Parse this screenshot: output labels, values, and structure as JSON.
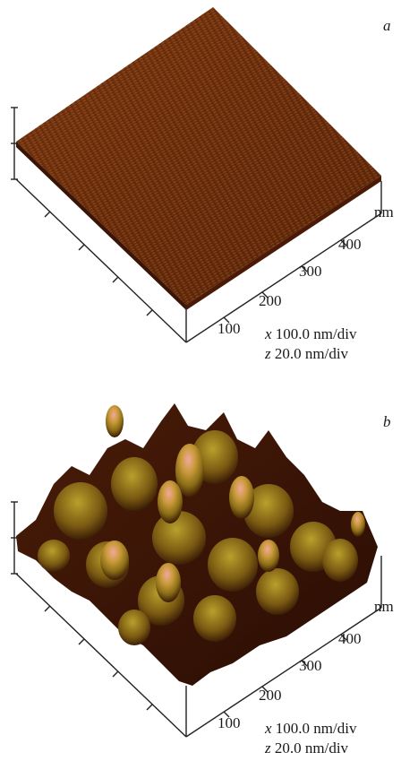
{
  "panels": [
    {
      "label": "a",
      "unit": "nm",
      "ticks": [
        "100",
        "200",
        "300",
        "400"
      ],
      "scale": {
        "x_axis": "x",
        "x_value": "100.0 nm/div",
        "z_axis": "z",
        "z_value": "20.0 nm/div"
      }
    },
    {
      "label": "b",
      "unit": "nm",
      "ticks": [
        "100",
        "200",
        "300",
        "400"
      ],
      "scale": {
        "x_axis": "x",
        "x_value": "100.0 nm/div",
        "z_axis": "z",
        "z_value": "20.0 nm/div"
      }
    }
  ],
  "colors": {
    "flat_surface": "#6b2e0e",
    "flat_surface_light": "#a8621c",
    "peak_highlight": "#f0a8a0",
    "peak_mid": "#9b8a22",
    "valley": "#2a0d04",
    "axis": "#222222"
  }
}
